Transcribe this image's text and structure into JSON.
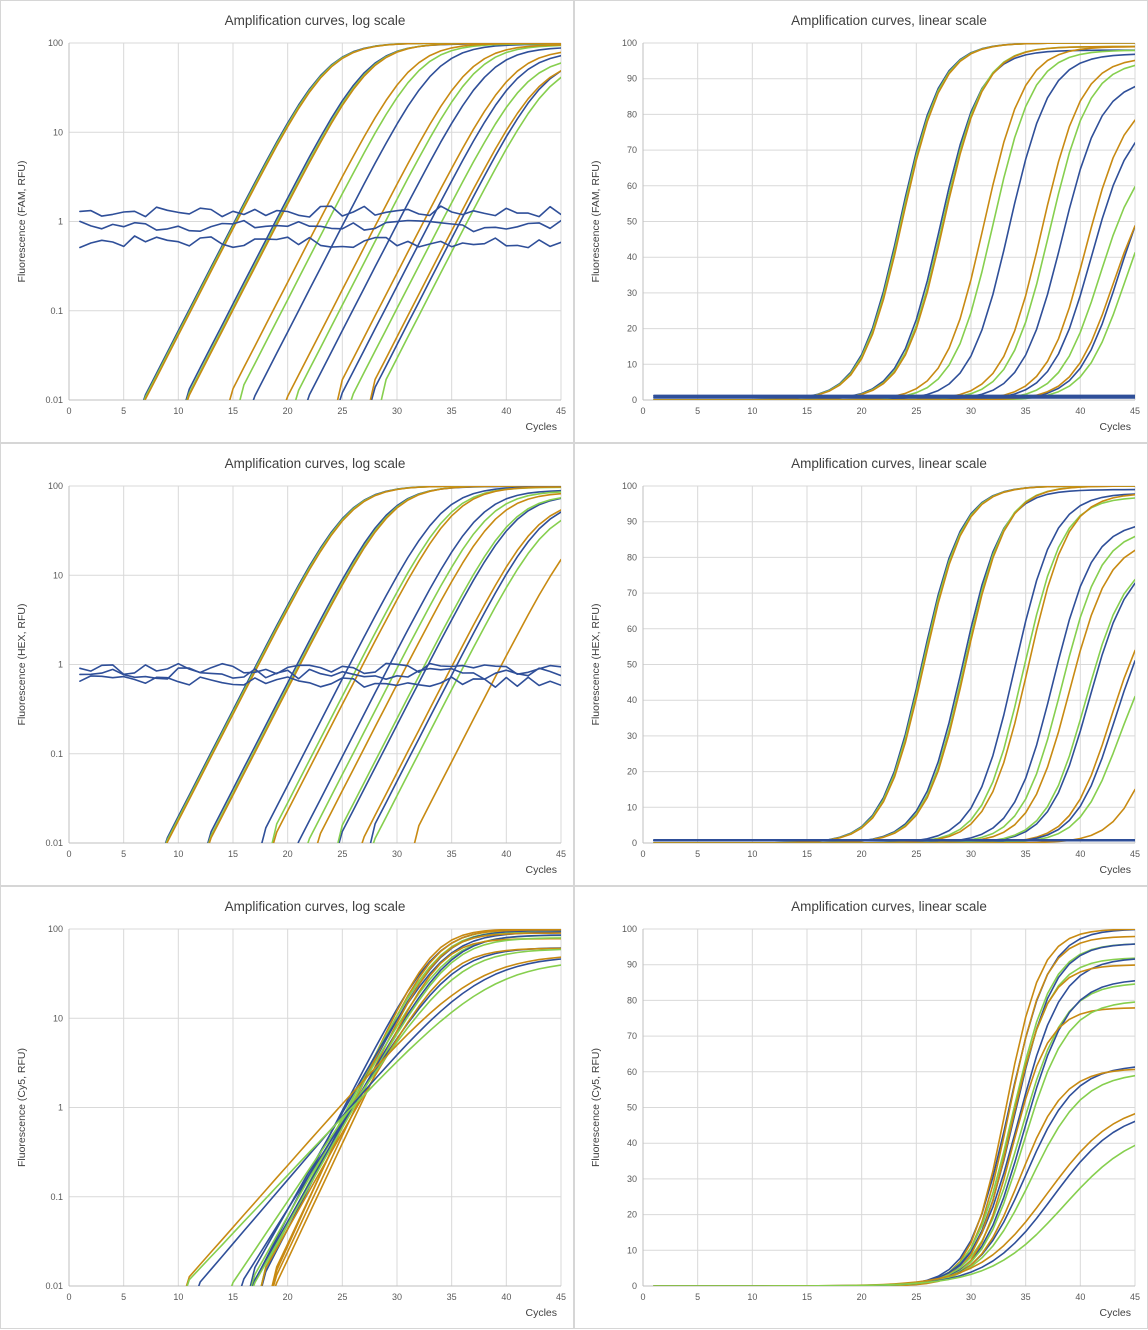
{
  "colors": {
    "blue": "#2f4f99",
    "green": "#86cf4e",
    "orange": "#c88a12"
  },
  "chart_data": [
    {
      "type": "line",
      "title": "Amplification curves, log scale",
      "ylabel": "Fluorescence (FAM, RFU)",
      "xlabel": "Cycles",
      "yscale": "log",
      "xlim": [
        0,
        45
      ],
      "ylim": [
        0.01,
        100
      ],
      "xticks": [
        "0",
        "5",
        "10",
        "15",
        "20",
        "25",
        "30",
        "35",
        "40",
        "45"
      ],
      "yticks": [
        "0.01",
        "0.1",
        "1",
        "10",
        "100"
      ],
      "series": [
        {
          "color": "blue",
          "ct": 23.5,
          "plateau": 100
        },
        {
          "color": "green",
          "ct": 23.6,
          "plateau": 100
        },
        {
          "color": "orange",
          "ct": 23.7,
          "plateau": 100
        },
        {
          "color": "blue",
          "ct": 27.2,
          "plateau": 98
        },
        {
          "color": "green",
          "ct": 27.4,
          "plateau": 99
        },
        {
          "color": "orange",
          "ct": 27.5,
          "plateau": 99
        },
        {
          "color": "blue",
          "ct": 33.5,
          "plateau": 97
        },
        {
          "color": "green",
          "ct": 32.0,
          "plateau": 98
        },
        {
          "color": "orange",
          "ct": 31.2,
          "plateau": 99
        },
        {
          "color": "blue",
          "ct": 38.3,
          "plateau": 90
        },
        {
          "color": "green",
          "ct": 37.2,
          "plateau": 95
        },
        {
          "color": "orange",
          "ct": 36.5,
          "plateau": 96
        },
        {
          "color": "blue",
          "ct": 41.0,
          "plateau": 80
        },
        {
          "color": "green",
          "ct": 41.8,
          "plateau": 70
        },
        {
          "color": "orange",
          "ct": 40.5,
          "plateau": 85
        },
        {
          "color": "blue",
          "ct": 43.5,
          "plateau": 70
        },
        {
          "color": "green",
          "ct": 44.0,
          "plateau": 65
        },
        {
          "color": "orange",
          "ct": 43.0,
          "plateau": 65
        },
        {
          "color": "blue",
          "baseline": 1.3
        },
        {
          "color": "blue",
          "baseline": 0.9
        },
        {
          "color": "blue",
          "baseline": 0.6
        }
      ]
    },
    {
      "type": "line",
      "title": "Amplification curves, linear scale",
      "ylabel": "Fluorescence (FAM, RFU)",
      "xlabel": "Cycles",
      "yscale": "linear",
      "xlim": [
        0,
        45
      ],
      "ylim": [
        0,
        100
      ],
      "xticks": [
        "0",
        "5",
        "10",
        "15",
        "20",
        "25",
        "30",
        "35",
        "40",
        "45"
      ],
      "yticks": [
        "0",
        "10",
        "20",
        "30",
        "40",
        "50",
        "60",
        "70",
        "80",
        "90",
        "100"
      ],
      "series": [
        {
          "color": "blue",
          "ct": 23.5,
          "plateau": 100
        },
        {
          "color": "green",
          "ct": 23.6,
          "plateau": 100
        },
        {
          "color": "orange",
          "ct": 23.7,
          "plateau": 100
        },
        {
          "color": "blue",
          "ct": 27.2,
          "plateau": 98
        },
        {
          "color": "green",
          "ct": 27.4,
          "plateau": 99
        },
        {
          "color": "orange",
          "ct": 27.5,
          "plateau": 99
        },
        {
          "color": "blue",
          "ct": 33.5,
          "plateau": 97
        },
        {
          "color": "green",
          "ct": 32.0,
          "plateau": 98
        },
        {
          "color": "orange",
          "ct": 31.2,
          "plateau": 99
        },
        {
          "color": "blue",
          "ct": 38.3,
          "plateau": 90
        },
        {
          "color": "green",
          "ct": 37.2,
          "plateau": 95
        },
        {
          "color": "orange",
          "ct": 36.5,
          "plateau": 96
        },
        {
          "color": "blue",
          "ct": 41.0,
          "plateau": 80
        },
        {
          "color": "green",
          "ct": 41.8,
          "plateau": 70
        },
        {
          "color": "orange",
          "ct": 40.5,
          "plateau": 85
        },
        {
          "color": "blue",
          "ct": 43.5,
          "plateau": 70
        },
        {
          "color": "green",
          "ct": 44.0,
          "plateau": 65
        },
        {
          "color": "orange",
          "ct": 43.0,
          "plateau": 65
        },
        {
          "color": "blue",
          "baseline": 1.3
        },
        {
          "color": "blue",
          "baseline": 0.9
        },
        {
          "color": "blue",
          "baseline": 0.6
        }
      ]
    },
    {
      "type": "line",
      "title": "Amplification curves, log scale",
      "ylabel": "Fluorescence (HEX, RFU)",
      "xlabel": "Cycles",
      "yscale": "log",
      "xlim": [
        0,
        45
      ],
      "ylim": [
        0.01,
        100
      ],
      "xticks": [
        "0",
        "5",
        "10",
        "15",
        "20",
        "25",
        "30",
        "35",
        "40",
        "45"
      ],
      "yticks": [
        "0.01",
        "0.1",
        "1",
        "10",
        "100"
      ],
      "series": [
        {
          "color": "blue",
          "ct": 25.5,
          "plateau": 100
        },
        {
          "color": "green",
          "ct": 25.6,
          "plateau": 100
        },
        {
          "color": "orange",
          "ct": 25.7,
          "plateau": 100
        },
        {
          "color": "blue",
          "ct": 29.2,
          "plateau": 99
        },
        {
          "color": "green",
          "ct": 29.4,
          "plateau": 100
        },
        {
          "color": "orange",
          "ct": 29.5,
          "plateau": 100
        },
        {
          "color": "blue",
          "ct": 34.0,
          "plateau": 98
        },
        {
          "color": "green",
          "ct": 34.8,
          "plateau": 97
        },
        {
          "color": "orange",
          "ct": 35.2,
          "plateau": 98
        },
        {
          "color": "blue",
          "ct": 37.5,
          "plateau": 90
        },
        {
          "color": "green",
          "ct": 38.3,
          "plateau": 88
        },
        {
          "color": "orange",
          "ct": 39.0,
          "plateau": 85
        },
        {
          "color": "blue",
          "ct": 40.8,
          "plateau": 80
        },
        {
          "color": "green",
          "ct": 40.5,
          "plateau": 80
        },
        {
          "color": "orange",
          "ct": 42.8,
          "plateau": 70
        },
        {
          "color": "blue",
          "ct": 43.2,
          "plateau": 70
        },
        {
          "color": "green",
          "ct": 43.6,
          "plateau": 60
        },
        {
          "color": "orange",
          "ct": 47.0,
          "plateau": 60
        },
        {
          "color": "blue",
          "baseline": 0.9
        },
        {
          "color": "blue",
          "baseline": 0.8
        },
        {
          "color": "blue",
          "baseline": 0.65
        }
      ]
    },
    {
      "type": "line",
      "title": "Amplification curves, linear scale",
      "ylabel": "Fluorescence (HEX, RFU)",
      "xlabel": "Cycles",
      "yscale": "linear",
      "xlim": [
        0,
        45
      ],
      "ylim": [
        0,
        100
      ],
      "xticks": [
        "0",
        "5",
        "10",
        "15",
        "20",
        "25",
        "30",
        "35",
        "40",
        "45"
      ],
      "yticks": [
        "0",
        "10",
        "20",
        "30",
        "40",
        "50",
        "60",
        "70",
        "80",
        "90",
        "100"
      ],
      "series": [
        {
          "color": "blue",
          "ct": 25.5,
          "plateau": 100
        },
        {
          "color": "green",
          "ct": 25.6,
          "plateau": 100
        },
        {
          "color": "orange",
          "ct": 25.7,
          "plateau": 100
        },
        {
          "color": "blue",
          "ct": 29.2,
          "plateau": 99
        },
        {
          "color": "green",
          "ct": 29.4,
          "plateau": 100
        },
        {
          "color": "orange",
          "ct": 29.5,
          "plateau": 100
        },
        {
          "color": "blue",
          "ct": 34.0,
          "plateau": 98
        },
        {
          "color": "green",
          "ct": 34.8,
          "plateau": 97
        },
        {
          "color": "orange",
          "ct": 35.2,
          "plateau": 98
        },
        {
          "color": "blue",
          "ct": 37.5,
          "plateau": 90
        },
        {
          "color": "green",
          "ct": 38.3,
          "plateau": 88
        },
        {
          "color": "orange",
          "ct": 39.0,
          "plateau": 85
        },
        {
          "color": "blue",
          "ct": 40.8,
          "plateau": 80
        },
        {
          "color": "green",
          "ct": 40.5,
          "plateau": 80
        },
        {
          "color": "orange",
          "ct": 42.8,
          "plateau": 70
        },
        {
          "color": "blue",
          "ct": 43.2,
          "plateau": 70
        },
        {
          "color": "green",
          "ct": 43.6,
          "plateau": 60
        },
        {
          "color": "orange",
          "ct": 47.0,
          "plateau": 60
        },
        {
          "color": "blue",
          "baseline": 0.9
        },
        {
          "color": "blue",
          "baseline": 0.8
        },
        {
          "color": "blue",
          "baseline": 0.65
        }
      ]
    },
    {
      "type": "line",
      "title": "Amplification curves, log scale",
      "ylabel": "Fluorescence (Cy5, RFU)",
      "xlabel": "Cycles",
      "yscale": "log",
      "xlim": [
        0,
        45
      ],
      "ylim": [
        0.01,
        100
      ],
      "xticks": [
        "0",
        "5",
        "10",
        "15",
        "20",
        "25",
        "30",
        "35",
        "40",
        "45"
      ],
      "yticks": [
        "0.01",
        "0.1",
        "1",
        "10",
        "100"
      ],
      "series": [
        {
          "color": "blue",
          "ct": 33.5,
          "plateau": 100,
          "k": 0.55
        },
        {
          "color": "orange",
          "ct": 33.2,
          "plateau": 100,
          "k": 0.62
        },
        {
          "color": "green",
          "ct": 33.8,
          "plateau": 96,
          "k": 0.55
        },
        {
          "color": "blue",
          "ct": 34.0,
          "plateau": 96,
          "k": 0.55
        },
        {
          "color": "orange",
          "ct": 33.5,
          "plateau": 98,
          "k": 0.6
        },
        {
          "color": "green",
          "ct": 33.7,
          "plateau": 92,
          "k": 0.55
        },
        {
          "color": "blue",
          "ct": 34.3,
          "plateau": 92,
          "k": 0.5
        },
        {
          "color": "orange",
          "ct": 33.7,
          "plateau": 90,
          "k": 0.6
        },
        {
          "color": "green",
          "ct": 34.5,
          "plateau": 85,
          "k": 0.5
        },
        {
          "color": "blue",
          "ct": 34.8,
          "plateau": 86,
          "k": 0.5
        },
        {
          "color": "orange",
          "ct": 33.8,
          "plateau": 78,
          "k": 0.6
        },
        {
          "color": "green",
          "ct": 34.8,
          "plateau": 80,
          "k": 0.5
        },
        {
          "color": "blue",
          "ct": 35.0,
          "plateau": 62,
          "k": 0.45
        },
        {
          "color": "orange",
          "ct": 34.5,
          "plateau": 61,
          "k": 0.5
        },
        {
          "color": "green",
          "ct": 35.5,
          "plateau": 60,
          "k": 0.42
        },
        {
          "color": "blue",
          "ct": 37.5,
          "plateau": 50,
          "k": 0.33
        },
        {
          "color": "orange",
          "ct": 37.0,
          "plateau": 52,
          "k": 0.32
        },
        {
          "color": "green",
          "ct": 38.5,
          "plateau": 45,
          "k": 0.3
        }
      ]
    },
    {
      "type": "line",
      "title": "Amplification curves, linear scale",
      "ylabel": "Fluorescence (Cy5, RFU)",
      "xlabel": "Cycles",
      "yscale": "linear",
      "xlim": [
        0,
        45
      ],
      "ylim": [
        0,
        100
      ],
      "xticks": [
        "0",
        "5",
        "10",
        "15",
        "20",
        "25",
        "30",
        "35",
        "40",
        "45"
      ],
      "yticks": [
        "0",
        "10",
        "20",
        "30",
        "40",
        "50",
        "60",
        "70",
        "80",
        "90",
        "100"
      ],
      "series": [
        {
          "color": "blue",
          "ct": 33.5,
          "plateau": 100,
          "k": 0.55
        },
        {
          "color": "orange",
          "ct": 33.2,
          "plateau": 100,
          "k": 0.62
        },
        {
          "color": "green",
          "ct": 33.8,
          "plateau": 96,
          "k": 0.55
        },
        {
          "color": "blue",
          "ct": 34.0,
          "plateau": 96,
          "k": 0.55
        },
        {
          "color": "orange",
          "ct": 33.5,
          "plateau": 98,
          "k": 0.6
        },
        {
          "color": "green",
          "ct": 33.7,
          "plateau": 92,
          "k": 0.55
        },
        {
          "color": "blue",
          "ct": 34.3,
          "plateau": 92,
          "k": 0.5
        },
        {
          "color": "orange",
          "ct": 33.7,
          "plateau": 90,
          "k": 0.6
        },
        {
          "color": "green",
          "ct": 34.5,
          "plateau": 85,
          "k": 0.5
        },
        {
          "color": "blue",
          "ct": 34.8,
          "plateau": 86,
          "k": 0.5
        },
        {
          "color": "orange",
          "ct": 33.8,
          "plateau": 78,
          "k": 0.6
        },
        {
          "color": "green",
          "ct": 34.8,
          "plateau": 80,
          "k": 0.5
        },
        {
          "color": "blue",
          "ct": 35.0,
          "plateau": 62,
          "k": 0.45
        },
        {
          "color": "orange",
          "ct": 34.5,
          "plateau": 61,
          "k": 0.5
        },
        {
          "color": "green",
          "ct": 35.5,
          "plateau": 60,
          "k": 0.42
        },
        {
          "color": "blue",
          "ct": 37.5,
          "plateau": 50,
          "k": 0.33
        },
        {
          "color": "orange",
          "ct": 37.0,
          "plateau": 52,
          "k": 0.32
        },
        {
          "color": "green",
          "ct": 38.5,
          "plateau": 45,
          "k": 0.3
        }
      ]
    }
  ]
}
